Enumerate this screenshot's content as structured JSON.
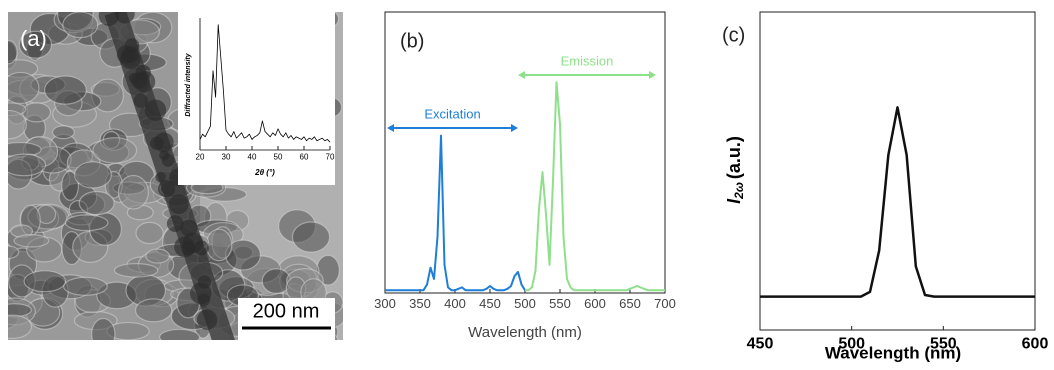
{
  "image": {
    "panel_label": "(a)",
    "scale_bar": "200 nm"
  },
  "chart_data": [
    {
      "type": "line",
      "xlabel": "2θ (°)",
      "ylabel": "Diffracted intensity",
      "xlim": [
        20,
        70
      ],
      "xticks": [
        20,
        30,
        40,
        50,
        60,
        70
      ],
      "ylim": [
        0,
        100
      ],
      "series": [
        {
          "color": "#000000",
          "x": [
            20,
            21,
            22,
            23,
            24,
            25,
            26,
            27,
            28,
            29,
            30,
            31,
            32,
            33,
            34,
            35,
            36,
            37,
            38,
            39,
            40,
            41,
            42,
            43,
            44,
            45,
            46,
            47,
            48,
            49,
            50,
            51,
            52,
            53,
            54,
            55,
            56,
            57,
            58,
            59,
            60,
            61,
            62,
            63,
            64,
            65,
            66,
            67,
            68,
            69,
            70
          ],
          "values": [
            8,
            12,
            10,
            14,
            18,
            60,
            40,
            95,
            70,
            45,
            15,
            12,
            10,
            14,
            9,
            11,
            13,
            9,
            10,
            12,
            8,
            10,
            11,
            13,
            22,
            14,
            12,
            10,
            13,
            11,
            16,
            12,
            10,
            13,
            9,
            11,
            8,
            10,
            9,
            8,
            10,
            7,
            9,
            8,
            10,
            7,
            8,
            9,
            7,
            8,
            6
          ]
        }
      ]
    },
    {
      "type": "line",
      "panel_label": "(b)",
      "xlabel": "Wavelength (nm)",
      "xlim": [
        300,
        700
      ],
      "xticks": [
        300,
        350,
        400,
        450,
        500,
        550,
        600,
        650,
        700
      ],
      "ylim": [
        0,
        100
      ],
      "annotations": [
        {
          "text": "Excitation",
          "color": "#1f7fd6"
        },
        {
          "text": "Emission",
          "color": "#8fe08a"
        }
      ],
      "series": [
        {
          "color": "#1f7fd6",
          "x": [
            300,
            305,
            310,
            315,
            320,
            325,
            330,
            335,
            340,
            345,
            350,
            355,
            360,
            365,
            370,
            375,
            380,
            385,
            390,
            395,
            400,
            405,
            410,
            415,
            420,
            425,
            430,
            435,
            440,
            445,
            450,
            455,
            460,
            465,
            470,
            475,
            480,
            485,
            490,
            495,
            500
          ],
          "values": [
            1,
            1,
            1,
            1,
            1,
            1,
            1,
            1,
            1,
            1,
            1,
            1,
            3,
            9,
            5,
            20,
            56,
            10,
            2,
            1,
            1,
            1.5,
            2,
            1,
            1,
            1,
            1,
            1,
            1,
            1.5,
            2.5,
            1.5,
            1,
            1,
            1,
            1.5,
            2.5,
            6,
            7.5,
            3,
            1
          ]
        },
        {
          "color": "#8fe08a",
          "x": [
            500,
            505,
            510,
            515,
            520,
            525,
            530,
            535,
            540,
            545,
            550,
            555,
            560,
            565,
            570,
            575,
            580,
            585,
            590,
            595,
            600,
            605,
            610,
            615,
            620,
            625,
            630,
            635,
            640,
            645,
            650,
            655,
            660,
            665,
            670,
            675,
            680,
            685,
            690,
            695,
            700
          ],
          "values": [
            1,
            1,
            2,
            8,
            30,
            43,
            28,
            10,
            40,
            75,
            60,
            20,
            5,
            2,
            1,
            1,
            1,
            1,
            1,
            1,
            1,
            1,
            1,
            1,
            1,
            1,
            1,
            1,
            1,
            1,
            1.5,
            2,
            2.5,
            2,
            1.5,
            1,
            1,
            1,
            1,
            1,
            1
          ]
        }
      ]
    },
    {
      "type": "line",
      "panel_label": "(c)",
      "xlabel": "Wavelength (nm)",
      "ylabel": {
        "symbol": "I",
        "subscript": "2ω",
        "unit": "(a.u.)"
      },
      "xlim": [
        450,
        600
      ],
      "xticks": [
        450,
        500,
        550,
        600
      ],
      "ylim": [
        0,
        100
      ],
      "series": [
        {
          "color": "#111111",
          "x": [
            450,
            455,
            460,
            465,
            470,
            475,
            480,
            485,
            490,
            495,
            500,
            505,
            510,
            515,
            520,
            525,
            530,
            535,
            540,
            545,
            550,
            555,
            560,
            565,
            570,
            575,
            580,
            585,
            590,
            595,
            600
          ],
          "values": [
            10.5,
            10.5,
            10.5,
            10.5,
            10.5,
            10.5,
            10.5,
            10.5,
            10.5,
            10.5,
            10.5,
            10.5,
            12,
            25,
            55,
            70,
            55,
            20,
            11,
            10.5,
            10.5,
            10.5,
            10.5,
            10.5,
            10.5,
            10.5,
            10.5,
            10.5,
            10.5,
            10.5,
            10.5
          ]
        }
      ]
    }
  ]
}
